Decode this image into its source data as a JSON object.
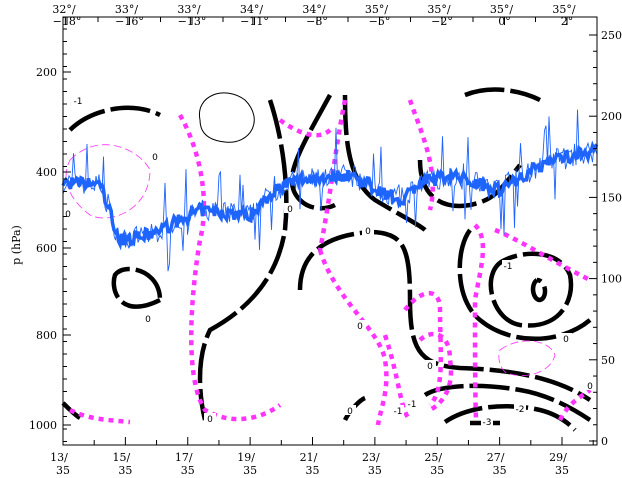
{
  "chart_data": {
    "type": "line",
    "title": "",
    "ylabel": "p (hPa)",
    "left_axis": {
      "ticks": [
        200,
        400,
        600,
        800,
        1000
      ],
      "inverted": true
    },
    "right_axis": {
      "ticks": [
        0,
        50,
        100,
        150,
        200,
        250
      ],
      "range": [
        0,
        250
      ]
    },
    "bottom_axis": {
      "tick_labels": [
        [
          "13/",
          "35"
        ],
        [
          "15/",
          "35"
        ],
        [
          "17/",
          "35"
        ],
        [
          "19/",
          "35"
        ],
        [
          "21/",
          "35"
        ],
        [
          "23/",
          "35"
        ],
        [
          "25/",
          "35"
        ],
        [
          "27/",
          "35"
        ],
        [
          "29/",
          "35"
        ]
      ],
      "range": [
        13,
        30.1
      ]
    },
    "top_axis": {
      "tick_labels": [
        [
          "32°/",
          "−18°"
        ],
        [
          "33°/",
          "−16°"
        ],
        [
          "33°/",
          "−13°"
        ],
        [
          "34°/",
          "−11°"
        ],
        [
          "34°/",
          "−8°"
        ],
        [
          "35°/",
          "−5°"
        ],
        [
          "35°/",
          "−2°"
        ],
        [
          "35°/",
          "0°"
        ],
        [
          "35°/",
          "2°"
        ]
      ]
    },
    "series": [
      {
        "color": "#1e64ff",
        "axis": "right",
        "style": "thick",
        "x": [
          13,
          14.2,
          14.8,
          15.8,
          17.4,
          19,
          19.8,
          20.6,
          22.2,
          23.8,
          24.4,
          25.4,
          27,
          28.6,
          30.1
        ],
        "y": [
          159,
          158,
          124,
          127,
          142,
          139,
          155,
          161,
          164,
          148,
          158,
          164,
          155,
          173,
          179
        ]
      }
    ],
    "contour_labels": [
      "-1",
      "0",
      "0",
      "0",
      "0",
      "0",
      "-1",
      "0",
      "-1",
      "-2",
      "-3",
      "0",
      "0",
      "0",
      "0",
      "0",
      "-1"
    ],
    "colors": {
      "solid_contours": "#000000",
      "dashed_contours": "#ff33ff",
      "series": "#1e64ff"
    },
    "grid": false
  }
}
